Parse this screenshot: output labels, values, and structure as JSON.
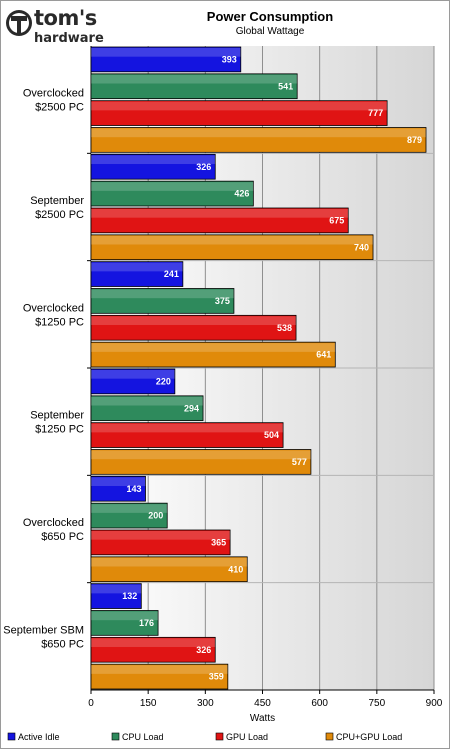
{
  "brand": {
    "line1": "tom's",
    "line2": "hardware"
  },
  "chart_data": {
    "type": "bar",
    "orientation": "horizontal",
    "title": "Power Consumption",
    "subtitle": "Global Wattage",
    "xlabel": "Watts",
    "xlim": [
      0,
      900
    ],
    "xticks": [
      0,
      150,
      300,
      450,
      600,
      750,
      900
    ],
    "grid": true,
    "legend_position": "bottom",
    "categories": [
      [
        "Overclocked",
        "$2500 PC"
      ],
      [
        "September",
        "$2500 PC"
      ],
      [
        "Overclocked",
        "$1250 PC"
      ],
      [
        "September",
        "$1250 PC"
      ],
      [
        "Overclocked",
        "$650 PC"
      ],
      [
        "September SBM",
        "$650 PC"
      ]
    ],
    "series": [
      {
        "name": "Active Idle",
        "color": "#1414e0",
        "values": [
          393,
          326,
          241,
          220,
          143,
          132
        ]
      },
      {
        "name": "CPU Load",
        "color": "#2e8a5c",
        "values": [
          541,
          426,
          375,
          294,
          200,
          176
        ]
      },
      {
        "name": "GPU Load",
        "color": "#e01414",
        "values": [
          777,
          675,
          538,
          504,
          365,
          326
        ]
      },
      {
        "name": "CPU+GPU Load",
        "color": "#e08a0a",
        "values": [
          879,
          740,
          641,
          577,
          410,
          359
        ]
      }
    ]
  }
}
